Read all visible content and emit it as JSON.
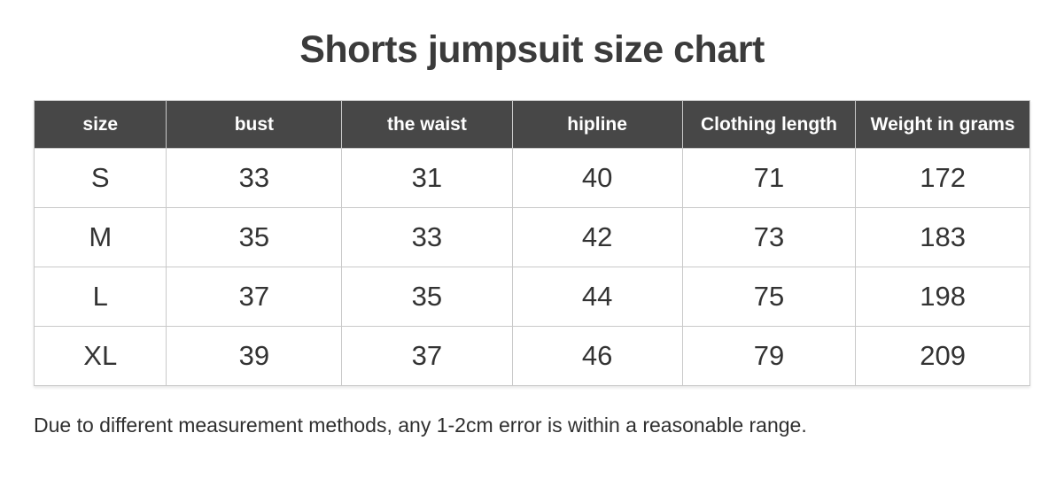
{
  "title": "Shorts jumpsuit size chart",
  "note": "Due to different measurement methods, any 1-2cm error is within a reasonable range.",
  "colors": {
    "header_background": "#474747",
    "header_text": "#ffffff",
    "body_text": "#333333",
    "border": "#c9c9c9",
    "title_text": "#3b3b3b",
    "page_background": "#ffffff"
  },
  "chart_data": {
    "type": "table",
    "title": "Shorts jumpsuit size chart",
    "columns": [
      "size",
      "bust",
      "the waist",
      "hipline",
      "Clothing length",
      "Weight in grams"
    ],
    "rows": [
      [
        "S",
        "33",
        "31",
        "40",
        "71",
        "172"
      ],
      [
        "M",
        "35",
        "33",
        "42",
        "73",
        "183"
      ],
      [
        "L",
        "37",
        "35",
        "44",
        "75",
        "198"
      ],
      [
        "XL",
        "39",
        "37",
        "46",
        "79",
        "209"
      ]
    ],
    "footnote": "Due to different measurement methods, any 1-2cm error is within a reasonable range."
  }
}
